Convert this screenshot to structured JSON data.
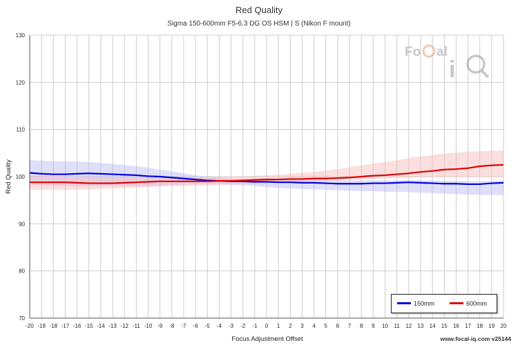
{
  "chart_data": {
    "type": "line",
    "title": "Red Quality",
    "subtitle": "Sigma 150-600mm F5-6.3 DG OS HSM | S (Nikon F mount)",
    "xlabel": "Focus Adjustment Offset",
    "ylabel": "Red Quality",
    "xlim": [
      -20,
      20
    ],
    "ylim": [
      70,
      130
    ],
    "grid": true,
    "legend_position": "bottom-right",
    "x_ticks": [
      -20,
      -19,
      -18,
      -17,
      -16,
      -15,
      -14,
      -13,
      -12,
      -11,
      -10,
      -9,
      -8,
      -7,
      -6,
      -5,
      -4,
      -3,
      -2,
      -1,
      0,
      1,
      2,
      3,
      4,
      5,
      6,
      7,
      8,
      9,
      10,
      11,
      12,
      13,
      14,
      15,
      16,
      17,
      18,
      19,
      20
    ],
    "y_ticks": [
      70,
      80,
      90,
      100,
      110,
      120,
      130
    ],
    "x": [
      -20,
      -19,
      -18,
      -17,
      -16,
      -15,
      -14,
      -13,
      -12,
      -11,
      -10,
      -9,
      -8,
      -7,
      -6,
      -5,
      -4,
      -3,
      -2,
      -1,
      0,
      1,
      2,
      3,
      4,
      5,
      6,
      7,
      8,
      9,
      10,
      11,
      12,
      13,
      14,
      15,
      16,
      17,
      18,
      19,
      20
    ],
    "series": [
      {
        "name": "150mm",
        "color": "#0000dd",
        "band_color": "#b8b8f5",
        "values": [
          100.8,
          100.6,
          100.5,
          100.5,
          100.6,
          100.7,
          100.6,
          100.5,
          100.4,
          100.3,
          100.1,
          100.0,
          99.8,
          99.6,
          99.4,
          99.2,
          99.1,
          99.0,
          99.0,
          98.9,
          98.9,
          98.8,
          98.8,
          98.7,
          98.7,
          98.6,
          98.5,
          98.5,
          98.5,
          98.6,
          98.6,
          98.7,
          98.8,
          98.7,
          98.6,
          98.5,
          98.5,
          98.4,
          98.4,
          98.6,
          98.7
        ],
        "upper": [
          103.5,
          103.4,
          103.3,
          103.2,
          103.2,
          103.1,
          102.9,
          102.7,
          102.5,
          102.2,
          101.9,
          101.5,
          101.1,
          100.7,
          100.3,
          100.0,
          99.8,
          99.6,
          99.5,
          99.4,
          99.4,
          99.3,
          99.3,
          99.3,
          99.3,
          99.2,
          99.2,
          99.2,
          99.2,
          99.2,
          99.2,
          99.2,
          99.3,
          99.2,
          99.2,
          99.1,
          99.1,
          99.0,
          99.0,
          99.1,
          99.2
        ],
        "lower": [
          98.3,
          98.2,
          98.1,
          98.0,
          98.0,
          98.0,
          98.0,
          98.0,
          98.0,
          98.0,
          98.0,
          98.1,
          98.2,
          98.3,
          98.4,
          98.4,
          98.4,
          98.3,
          98.2,
          98.0,
          97.8,
          97.6,
          97.5,
          97.4,
          97.3,
          97.2,
          97.1,
          97.0,
          96.9,
          96.9,
          96.8,
          96.8,
          96.7,
          96.6,
          96.5,
          96.4,
          96.3,
          96.2,
          96.1,
          96.1,
          96.1
        ]
      },
      {
        "name": "600mm",
        "color": "#dd0000",
        "band_color": "#f7b8b8",
        "values": [
          98.8,
          98.8,
          98.8,
          98.8,
          98.7,
          98.6,
          98.6,
          98.6,
          98.7,
          98.8,
          98.9,
          99.0,
          99.0,
          99.0,
          99.0,
          99.0,
          99.1,
          99.1,
          99.2,
          99.3,
          99.4,
          99.4,
          99.5,
          99.5,
          99.6,
          99.6,
          99.7,
          99.8,
          100.0,
          100.2,
          100.3,
          100.5,
          100.7,
          101.0,
          101.2,
          101.5,
          101.6,
          101.8,
          102.2,
          102.4,
          102.5
        ],
        "upper": [
          100.2,
          100.2,
          100.2,
          100.1,
          100.0,
          100.0,
          99.9,
          99.9,
          99.9,
          99.9,
          99.9,
          99.9,
          99.9,
          99.9,
          99.9,
          99.9,
          100.0,
          100.0,
          100.1,
          100.2,
          100.3,
          100.4,
          100.6,
          100.8,
          101.0,
          101.3,
          101.6,
          102.0,
          102.4,
          102.8,
          103.1,
          103.5,
          103.9,
          104.3,
          104.6,
          104.9,
          105.1,
          105.3,
          105.4,
          105.5,
          105.6
        ],
        "lower": [
          97.2,
          97.2,
          97.2,
          97.2,
          97.2,
          97.3,
          97.4,
          97.5,
          97.6,
          97.7,
          97.8,
          97.9,
          98.0,
          98.0,
          98.1,
          98.1,
          98.2,
          98.3,
          98.4,
          98.5,
          98.6,
          98.7,
          98.8,
          98.9,
          99.0,
          99.1,
          99.2,
          99.3,
          99.4,
          99.5,
          99.6,
          99.7,
          99.8,
          99.9,
          99.9,
          99.9,
          99.9,
          99.9,
          99.9,
          99.9,
          99.9
        ]
      }
    ]
  },
  "watermark": {
    "logo_top": "FoCal",
    "logo_bottom": "iQ"
  },
  "footer": {
    "credit": "www.focal-iq.com  v25144"
  }
}
